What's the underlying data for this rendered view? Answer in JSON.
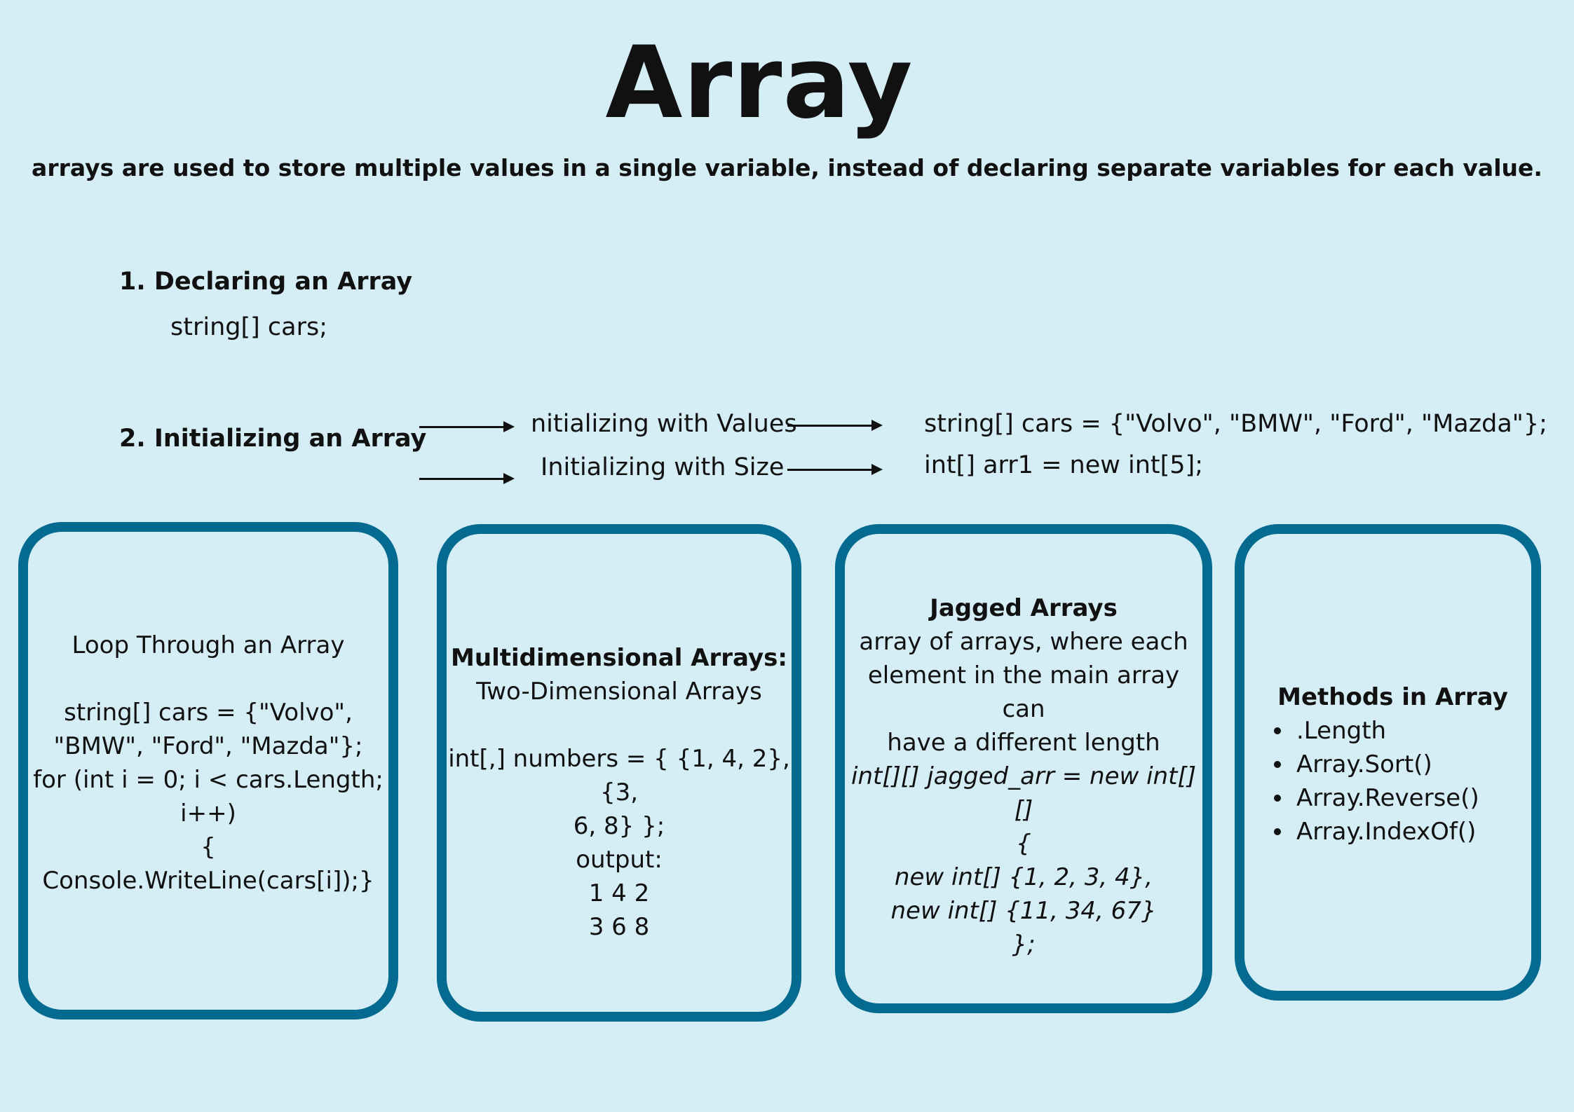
{
  "header": {
    "title": "Array",
    "subtitle": "arrays are used to store multiple values in a single variable, instead of declaring separate variables for each value."
  },
  "declaring": {
    "heading": "1. Declaring an Array",
    "code": "string[] cars;"
  },
  "initializing": {
    "heading": "2. Initializing an Array",
    "with_values_label": "nitializing with Values",
    "with_size_label": "Initializing with Size",
    "with_values_code": "string[] cars = {\"Volvo\", \"BMW\", \"Ford\", \"Mazda\"};",
    "with_size_code": "int[] arr1 = new int[5];"
  },
  "cards": {
    "loop": {
      "title": "Loop Through an Array",
      "lines": [
        "string[] cars = {\"Volvo\",",
        "\"BMW\", \"Ford\", \"Mazda\"};",
        "for (int i = 0; i < cars.Length;",
        "i++)",
        "{",
        "Console.WriteLine(cars[i]);}"
      ]
    },
    "multidimensional": {
      "title": "Multidimensional Arrays:",
      "subtitle": "Two-Dimensional Arrays",
      "lines": [
        "int[,] numbers = { {1, 4, 2}, {3,",
        "6, 8} };",
        "output:",
        "1 4 2",
        "3 6 8"
      ]
    },
    "jagged": {
      "title": "Jagged Arrays",
      "desc": [
        "array of arrays, where each",
        "element in the main array can",
        "have a different length"
      ],
      "code": [
        "int[][] jagged_arr = new int[][]",
        "{",
        "new int[] {1, 2, 3, 4},",
        "new int[] {11, 34, 67}",
        "};"
      ]
    },
    "methods": {
      "title": "Methods in Array",
      "items": [
        ".Length",
        "Array.Sort()",
        "Array.Reverse()",
        "Array.IndexOf()"
      ]
    }
  }
}
